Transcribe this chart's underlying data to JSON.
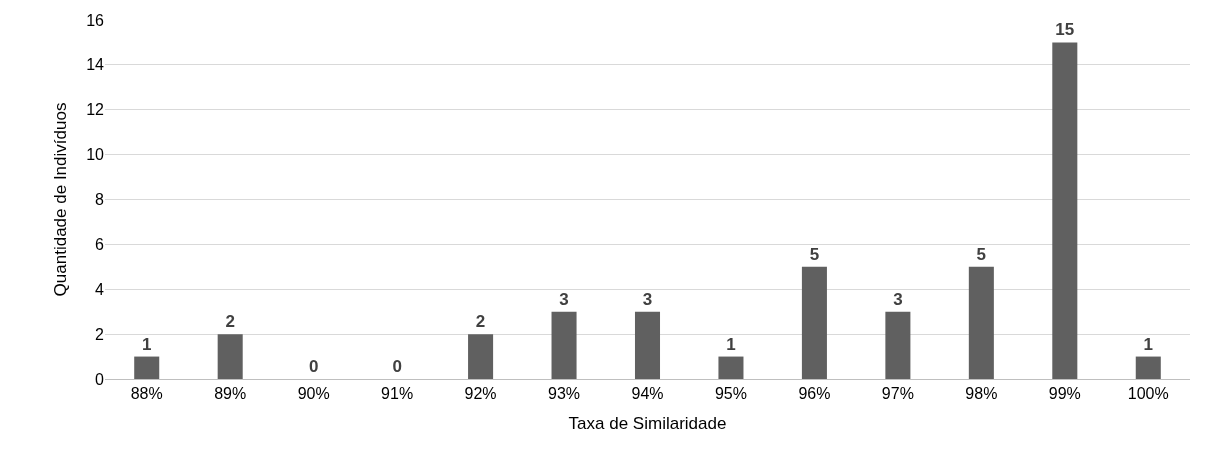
{
  "chart_data": {
    "type": "bar",
    "xlabel": "Taxa de Similaridade",
    "ylabel": "Quantidade de Indivíduos",
    "categories": [
      "88%",
      "89%",
      "90%",
      "91%",
      "92%",
      "93%",
      "94%",
      "95%",
      "96%",
      "97%",
      "98%",
      "99%",
      "100%"
    ],
    "values": [
      1,
      2,
      0,
      0,
      2,
      3,
      3,
      1,
      5,
      3,
      5,
      15,
      1
    ],
    "color": "#606060",
    "ylim": [
      0,
      16
    ],
    "yticks": [
      0,
      2,
      4,
      6,
      8,
      10,
      12,
      14,
      16
    ],
    "grid": "y",
    "data_labels": true
  }
}
